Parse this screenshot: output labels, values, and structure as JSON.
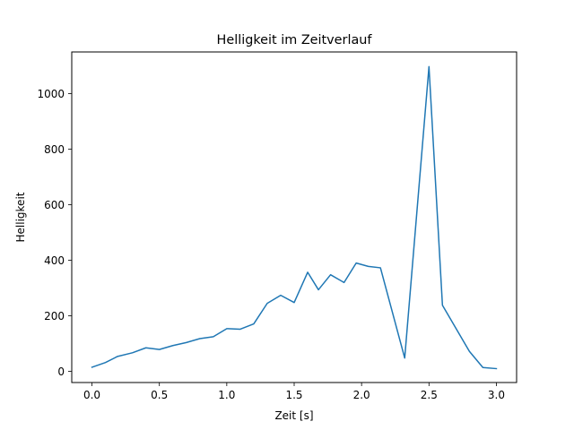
{
  "chart_data": {
    "type": "line",
    "title": "Helligkeit im Zeitverlauf",
    "xlabel": "Zeit [s]",
    "ylabel": "Helligkeit",
    "xlim": [
      -0.15,
      3.15
    ],
    "ylim": [
      -40,
      1150
    ],
    "x_ticks": [
      0.0,
      0.5,
      1.0,
      1.5,
      2.0,
      2.5,
      3.0
    ],
    "x_tick_labels": [
      "0.0",
      "0.5",
      "1.0",
      "1.5",
      "2.0",
      "2.5",
      "3.0"
    ],
    "y_ticks": [
      0,
      200,
      400,
      600,
      800,
      1000
    ],
    "y_tick_labels": [
      "0",
      "200",
      "400",
      "600",
      "800",
      "1000"
    ],
    "grid": false,
    "series": [
      {
        "color": "#1f77b4",
        "x": [
          0.0,
          0.1,
          0.19,
          0.3,
          0.4,
          0.5,
          0.6,
          0.7,
          0.8,
          0.9,
          1.0,
          1.1,
          1.2,
          1.3,
          1.4,
          1.5,
          1.6,
          1.68,
          1.77,
          1.87,
          1.96,
          2.05,
          2.14,
          2.32,
          2.5,
          2.6,
          2.7,
          2.8,
          2.9,
          3.0
        ],
        "y": [
          15,
          32,
          54,
          67,
          85,
          79,
          93,
          104,
          118,
          125,
          154,
          152,
          171,
          245,
          274,
          248,
          357,
          294,
          348,
          320,
          390,
          378,
          373,
          48,
          1097,
          238,
          155,
          72,
          14,
          10
        ]
      }
    ]
  }
}
